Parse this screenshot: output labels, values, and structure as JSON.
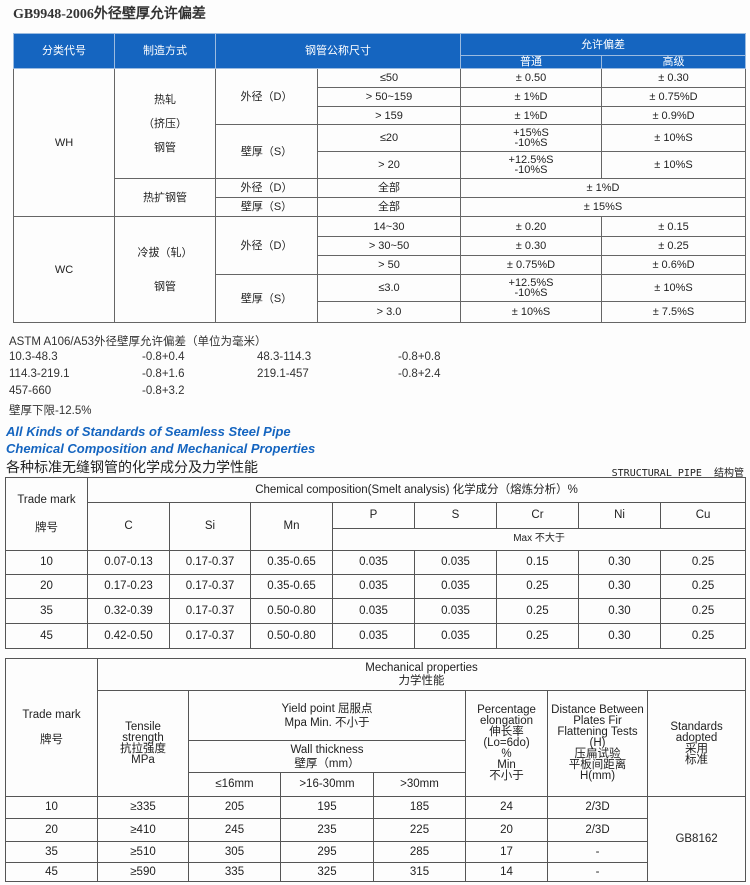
{
  "gb_table": {
    "title": "GB9948-2006外径壁厚允许偏差",
    "headers": {
      "category": "分类代号",
      "method": "制造方式",
      "nominal_size": "钢管公称尺寸",
      "tolerance": "允许偏差",
      "normal": "普通",
      "advanced": "高级"
    },
    "wh": {
      "code": "WH",
      "hot_rolled": [
        "热轧",
        "（挤压）",
        "钢管"
      ],
      "od_label": "外径（D）",
      "wt_label": "壁厚（S）",
      "od_rows": [
        {
          "size": "≤50",
          "normal": "± 0.50",
          "advanced": "± 0.30"
        },
        {
          "size": "> 50~159",
          "normal": "± 1%D",
          "advanced": "± 0.75%D"
        },
        {
          "size": "> 159",
          "normal": "± 1%D",
          "advanced": "± 0.9%D"
        }
      ],
      "wt_rows": [
        {
          "size": "≤20",
          "normal": "+15%S\n-10%S",
          "advanced": "± 10%S"
        },
        {
          "size": "> 20",
          "normal": "+12.5%S\n-10%S",
          "advanced": "± 10%S"
        }
      ],
      "hot_expanded": "热扩钢管",
      "he_rows": [
        {
          "label": "外径（D）",
          "size": "全部",
          "tolerance": "± 1%D"
        },
        {
          "label": "壁厚（S）",
          "size": "全部",
          "tolerance": "± 15%S"
        }
      ]
    },
    "wc": {
      "code": "WC",
      "cold_drawn": [
        "冷拔（轧）",
        "钢管"
      ],
      "od_label": "外径（D）",
      "wt_label": "壁厚（S）",
      "od_rows": [
        {
          "size": "14~30",
          "normal": "± 0.20",
          "advanced": "± 0.15"
        },
        {
          "size": "> 30~50",
          "normal": "± 0.30",
          "advanced": "± 0.25"
        },
        {
          "size": "> 50",
          "normal": "± 0.75%D",
          "advanced": "± 0.6%D"
        }
      ],
      "wt_rows": [
        {
          "size": "≤3.0",
          "normal": "+12.5%S\n-10%S",
          "advanced": "± 10%S"
        },
        {
          "size": "> 3.0",
          "normal": "± 10%S",
          "advanced": "± 7.5%S"
        }
      ]
    }
  },
  "astm": {
    "title": "ASTM A106/A53外径壁厚允许偏差（单位为毫米）",
    "rows": [
      [
        "10.3-48.3",
        "-0.8+0.4",
        "48.3-114.3",
        "-0.8+0.8"
      ],
      [
        "114.3-219.1",
        "-0.8+1.6",
        "219.1-457",
        "-0.8+2.4"
      ],
      [
        "457-660",
        "-0.8+3.2",
        "",
        ""
      ]
    ],
    "wall_note": "壁厚下限-12.5%"
  },
  "section": {
    "title_en_1": "All Kinds of Standards of Seamless Steel Pipe",
    "title_en_2": "Chemical Composition and Mechanical Properties",
    "title_cn": "各种标准无缝钢管的化学成分及力学性能",
    "structural": "STRUCTURAL PIPE  结构管"
  },
  "chem_table": {
    "trade_mark_en": "Trade mark",
    "trade_mark_cn": "牌号",
    "header": "Chemical composition(Smelt analysis)  化学成分（熔炼分析）%",
    "elements": [
      "C",
      "Si",
      "Mn",
      "P",
      "S",
      "Cr",
      "Ni",
      "Cu"
    ],
    "max_label": "Max  不大于",
    "rows": [
      [
        "10",
        "0.07-0.13",
        "0.17-0.37",
        "0.35-0.65",
        "0.035",
        "0.035",
        "0.15",
        "0.30",
        "0.25"
      ],
      [
        "20",
        "0.17-0.23",
        "0.17-0.37",
        "0.35-0.65",
        "0.035",
        "0.035",
        "0.25",
        "0.30",
        "0.25"
      ],
      [
        "35",
        "0.32-0.39",
        "0.17-0.37",
        "0.50-0.80",
        "0.035",
        "0.035",
        "0.25",
        "0.30",
        "0.25"
      ],
      [
        "45",
        "0.42-0.50",
        "0.17-0.37",
        "0.50-0.80",
        "0.035",
        "0.035",
        "0.25",
        "0.30",
        "0.25"
      ]
    ]
  },
  "mech_table": {
    "header": "Mechanical properties\n力学性能",
    "trade_mark": "Trade mark\n\n牌号",
    "tensile": "Tensile\nstrength\n抗拉强度\nMPa",
    "yield": "Yield point  屈服点\nMpa  Min.  不小于",
    "wall": "Wall thickness\n壁厚（mm）",
    "wall_cols": [
      "≤16mm",
      ">16-30mm",
      ">30mm"
    ],
    "elongation": "Percentage\nelongation\n伸长率\n(Lo=6do)\n%\nMin\n不小于",
    "distance": "Distance Between\nPlates Fir\nFlattening Tests\n(H)\n压扁试验\n平板间距离\nH(mm)",
    "standards": "Standards\nadopted\n采用\n标准",
    "standard_value": "GB8162",
    "rows": [
      [
        "10",
        "≥335",
        "205",
        "195",
        "185",
        "24",
        "2/3D"
      ],
      [
        "20",
        "≥410",
        "245",
        "235",
        "225",
        "20",
        "2/3D"
      ],
      [
        "35",
        "≥510",
        "305",
        "295",
        "285",
        "17",
        "-"
      ],
      [
        "45",
        "≥590",
        "335",
        "325",
        "315",
        "14",
        "-"
      ]
    ]
  }
}
